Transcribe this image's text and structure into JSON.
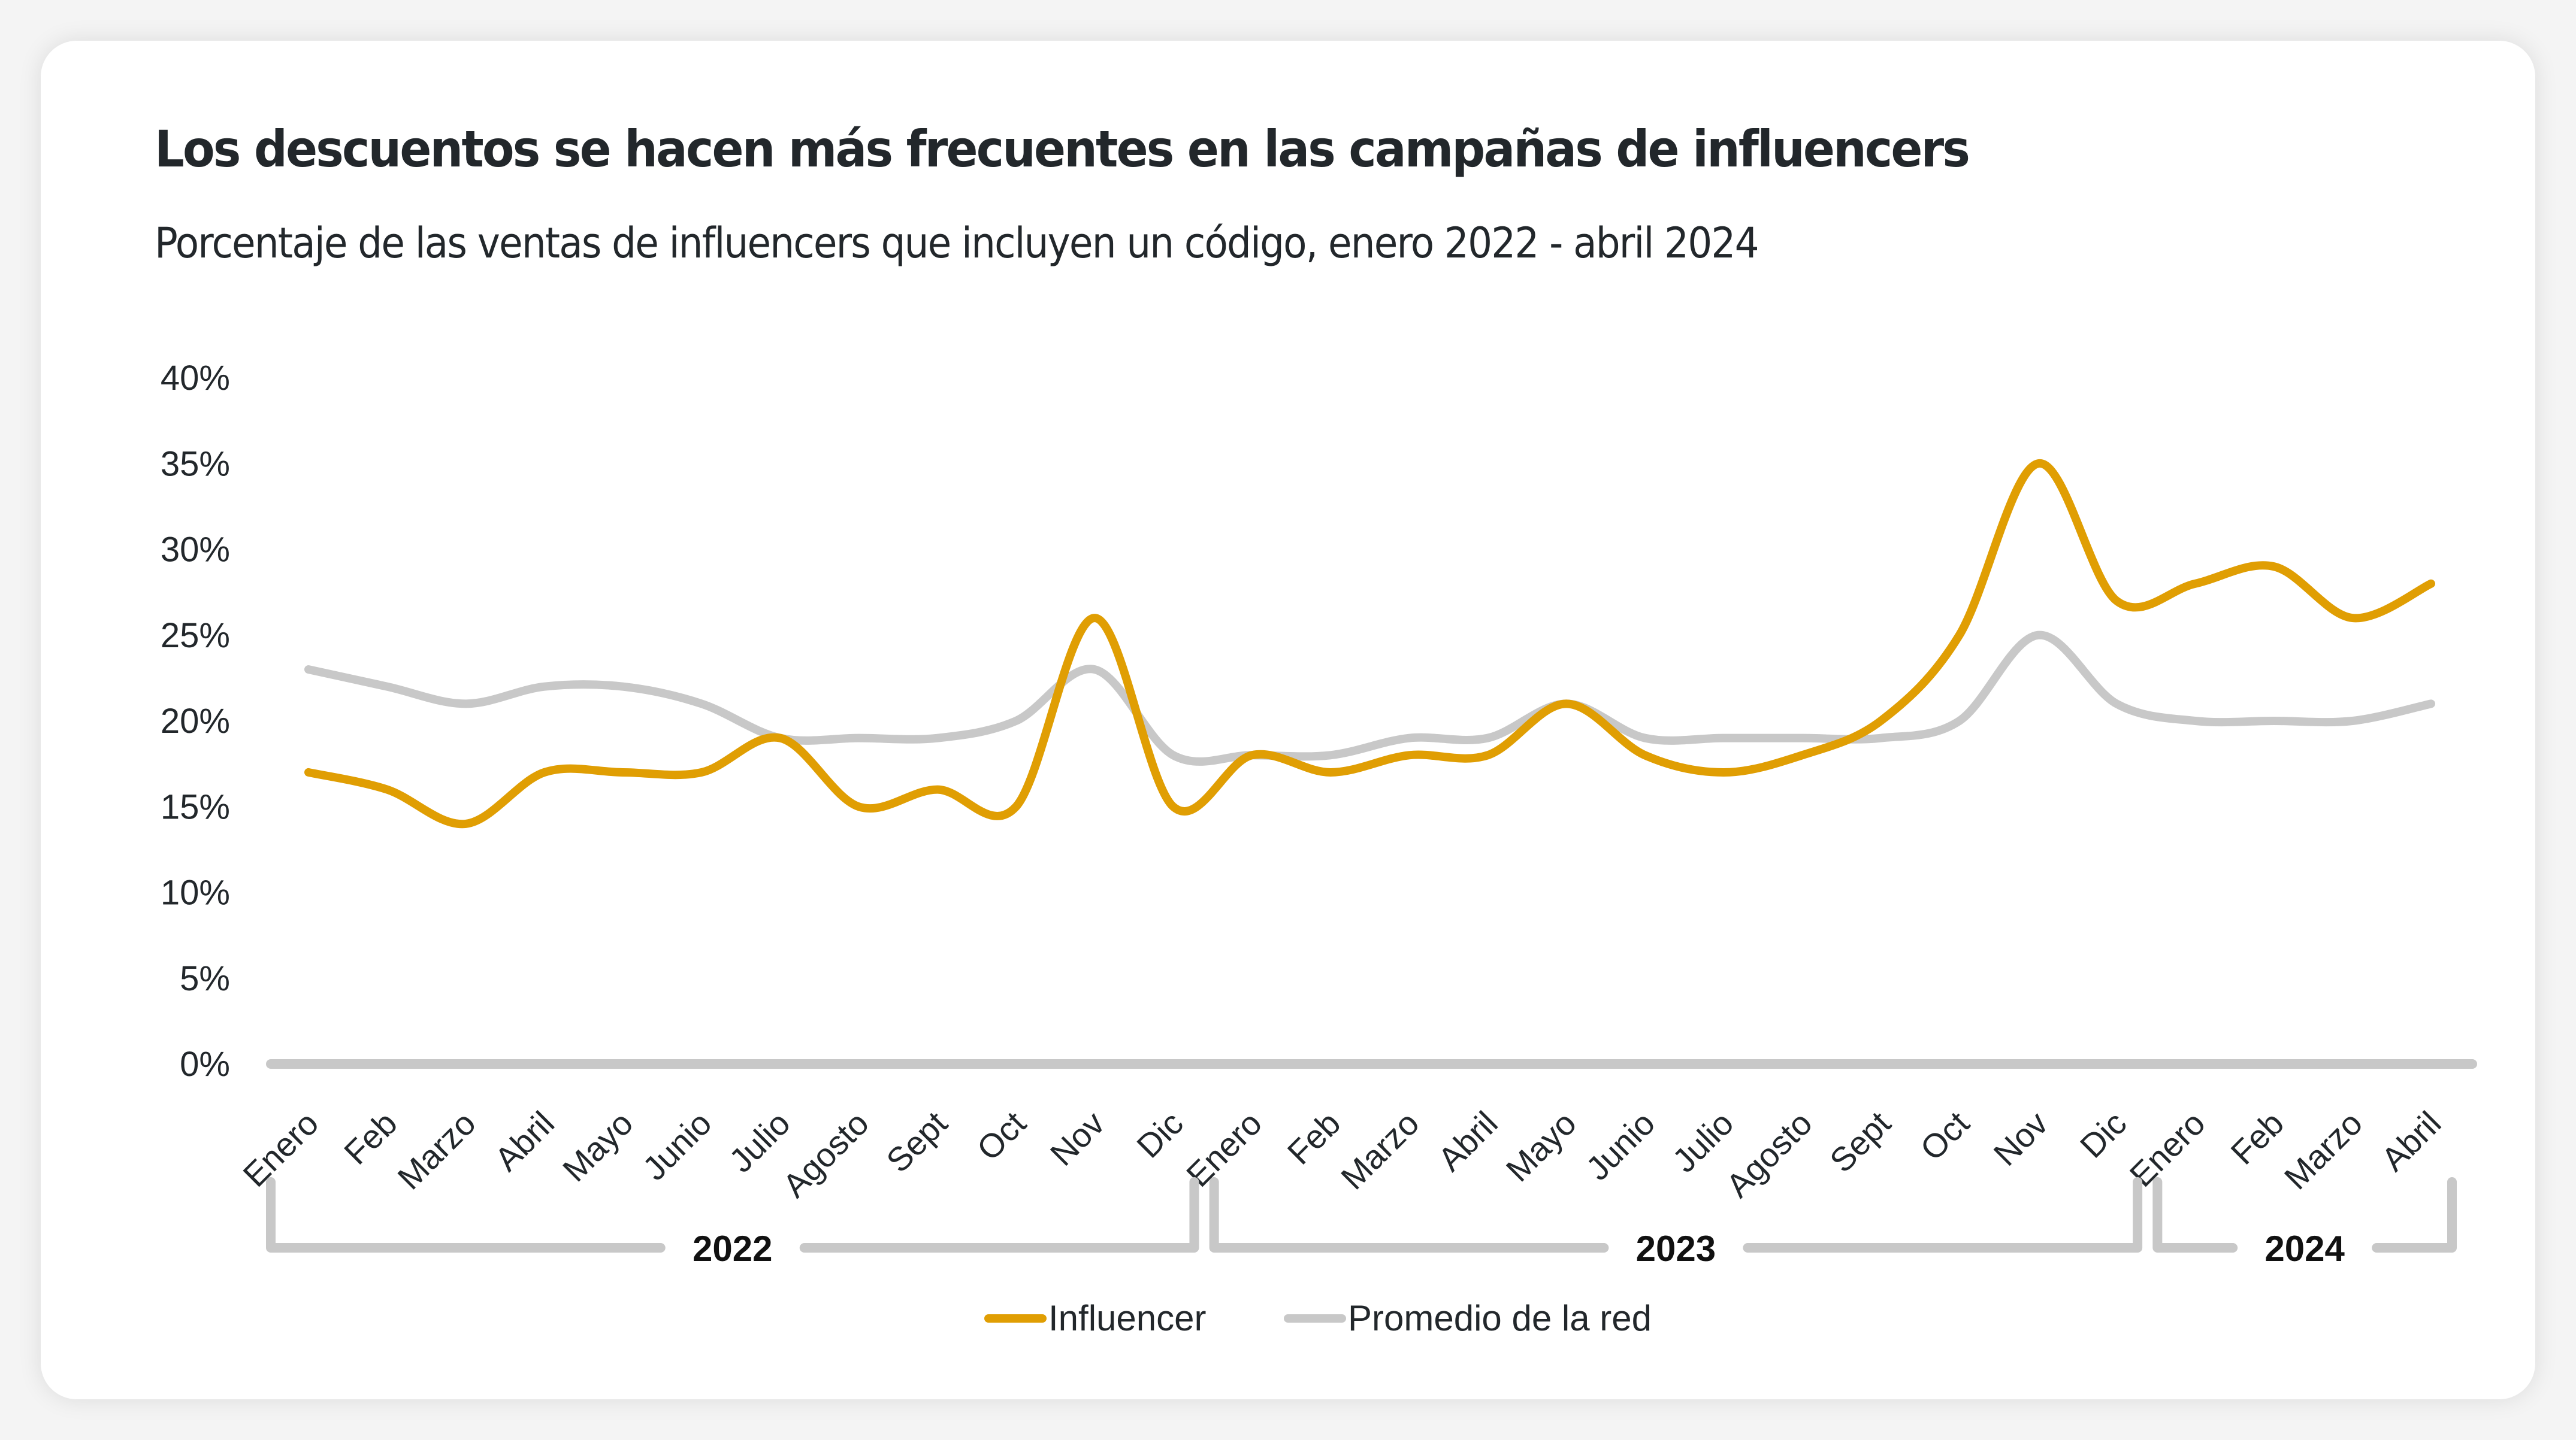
{
  "header": {
    "title": "Los descuentos se hacen más frecuentes en las campañas de influencers",
    "subtitle": "Porcentaje de las ventas de influencers que incluyen un código, enero 2022 - abril 2024"
  },
  "colors": {
    "influencer": "#e09e03",
    "network": "#c8c8c8",
    "axis": "#c8c8c8",
    "text": "#22272b"
  },
  "chart_data": {
    "type": "line",
    "title": "Los descuentos se hacen más frecuentes en las campañas de influencers",
    "subtitle": "Porcentaje de las ventas de influencers que incluyen un código, enero 2022 - abril 2024",
    "xlabel": "",
    "ylabel": "",
    "ylim": [
      0,
      40
    ],
    "yticks": [
      "0%",
      "5%",
      "10%",
      "15%",
      "20%",
      "25%",
      "30%",
      "35%",
      "40%"
    ],
    "ytick_values": [
      0,
      5,
      10,
      15,
      20,
      25,
      30,
      35,
      40
    ],
    "grid": false,
    "smooth": true,
    "categories": [
      "Enero",
      "Feb",
      "Marzo",
      "Abril",
      "Mayo",
      "Junio",
      "Julio",
      "Agosto",
      "Sept",
      "Oct",
      "Nov",
      "Dic",
      "Enero",
      "Feb",
      "Marzo",
      "Abril",
      "Mayo",
      "Junio",
      "Julio",
      "Agosto",
      "Sept",
      "Oct",
      "Nov",
      "Dic",
      "Enero",
      "Feb",
      "Marzo",
      "Abril"
    ],
    "year_groups": [
      {
        "label": "2022",
        "start": 0,
        "end": 11
      },
      {
        "label": "2023",
        "start": 12,
        "end": 23
      },
      {
        "label": "2024",
        "start": 24,
        "end": 27
      }
    ],
    "series": [
      {
        "name": "Influencer",
        "color": "#e09e03",
        "values": [
          17,
          16,
          14,
          17,
          17,
          17,
          19,
          15,
          16,
          15,
          26,
          15,
          18,
          17,
          18,
          18,
          21,
          18,
          17,
          18,
          20,
          25,
          35,
          27,
          28,
          29,
          26,
          28
        ]
      },
      {
        "name": "Promedio de la red",
        "color": "#c8c8c8",
        "values": [
          23,
          22,
          21,
          22,
          22,
          21,
          19,
          19,
          19,
          20,
          23,
          18,
          18,
          18,
          19,
          19,
          21,
          19,
          19,
          19,
          19,
          20,
          25,
          21,
          20,
          20,
          20,
          21
        ]
      }
    ],
    "legend": {
      "position": "bottom-center",
      "entries": [
        "Influencer",
        "Promedio de la red"
      ]
    }
  }
}
